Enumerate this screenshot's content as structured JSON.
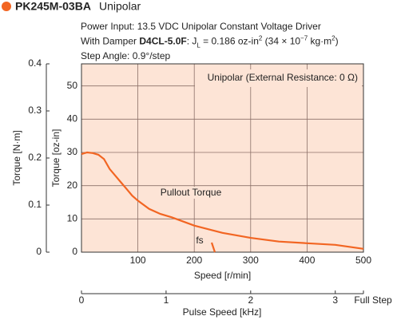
{
  "chart_data": {
    "type": "line",
    "title": "PK245M-03BA",
    "subtitle": "Unipolar",
    "info_lines": [
      [
        {
          "text": "Power Input: 13.5 VDC    Unipolar Constant Voltage Driver"
        }
      ],
      [
        {
          "text": "With Damper "
        },
        {
          "text": "D4CL-5.0F",
          "style": "bold"
        },
        {
          "text": ": J"
        },
        {
          "text": "L",
          "style": "sub"
        },
        {
          "text": " = 0.186 oz-in"
        },
        {
          "text": "2",
          "style": "sup"
        },
        {
          "text": " (34 × 10"
        },
        {
          "text": "−7",
          "style": "sup"
        },
        {
          "text": " kg·m"
        },
        {
          "text": "2",
          "style": "sup"
        },
        {
          "text": ")"
        }
      ],
      [
        {
          "text": "Step Angle: 0.9°/step"
        }
      ]
    ],
    "box_label": "Unipolar (External Resistance: 0 Ω)",
    "curve_label": "Pullout Torque",
    "fs_label": "fs",
    "xlabel": "Speed [r/min]",
    "x2label": "Pulse Speed [kHz]",
    "x2_end_label": "Full Step",
    "ylabel": "Torque [N·m]",
    "y2label": "Torque [oz-in]",
    "xlim": [
      0,
      500
    ],
    "xticks": [
      100,
      200,
      300,
      400,
      500
    ],
    "x2lim": [
      0,
      3.333
    ],
    "x2ticks": [
      0,
      1,
      2,
      3
    ],
    "ylim": [
      0,
      0.4
    ],
    "yticks": [
      0,
      0.1,
      0.2,
      0.3,
      0.4
    ],
    "y2lim": [
      0,
      56.64
    ],
    "y2ticks": [
      0,
      10,
      20,
      30,
      40,
      50
    ],
    "grid": true,
    "background": "#fde4d6",
    "series": [
      {
        "name": "Pullout Torque",
        "color": "#f26522",
        "axis": "y2",
        "x": [
          0,
          10,
          20,
          30,
          40,
          50,
          60,
          70,
          80,
          90,
          100,
          120,
          140,
          160,
          200,
          250,
          300,
          350,
          400,
          450,
          480,
          500
        ],
        "values": [
          29.5,
          30,
          29.8,
          29.3,
          28,
          25,
          23,
          21,
          19,
          17,
          15.5,
          13,
          11.5,
          10.5,
          8,
          5.8,
          4.3,
          3.2,
          2.7,
          2.2,
          1.5,
          1
        ]
      }
    ]
  }
}
